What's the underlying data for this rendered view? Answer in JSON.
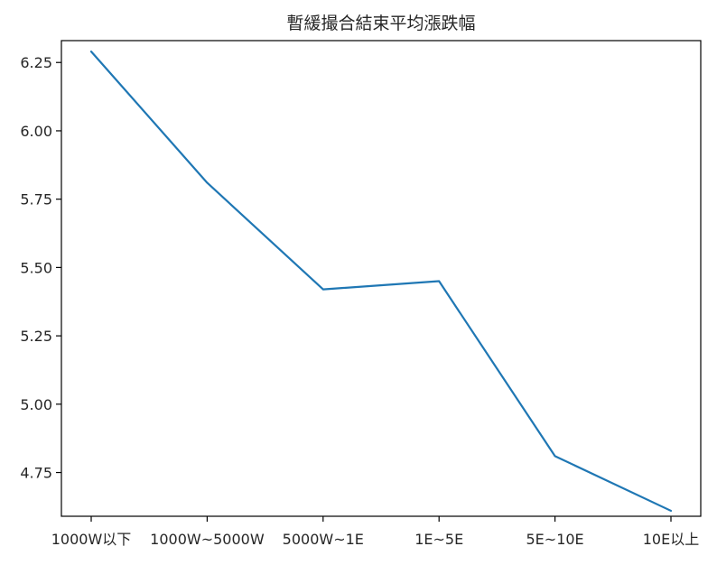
{
  "chart_data": {
    "type": "line",
    "title": "暫緩撮合結束平均漲跌幅",
    "xlabel": "",
    "ylabel": "",
    "categories": [
      "1000W以下",
      "1000W~5000W",
      "5000W~1E",
      "1E~5E",
      "5E~10E",
      "10E以上"
    ],
    "series": [
      {
        "values": [
          6.29,
          5.81,
          5.42,
          5.45,
          4.81,
          4.61
        ],
        "color": "#1f77b4"
      }
    ],
    "yticks": [
      4.75,
      5.0,
      5.25,
      5.5,
      5.75,
      6.0,
      6.25
    ],
    "ytick_labels": [
      "4.75",
      "5.00",
      "5.25",
      "5.50",
      "5.75",
      "6.00",
      "6.25"
    ],
    "ylim": [
      4.59,
      6.33
    ],
    "grid": false,
    "legend": "none"
  }
}
